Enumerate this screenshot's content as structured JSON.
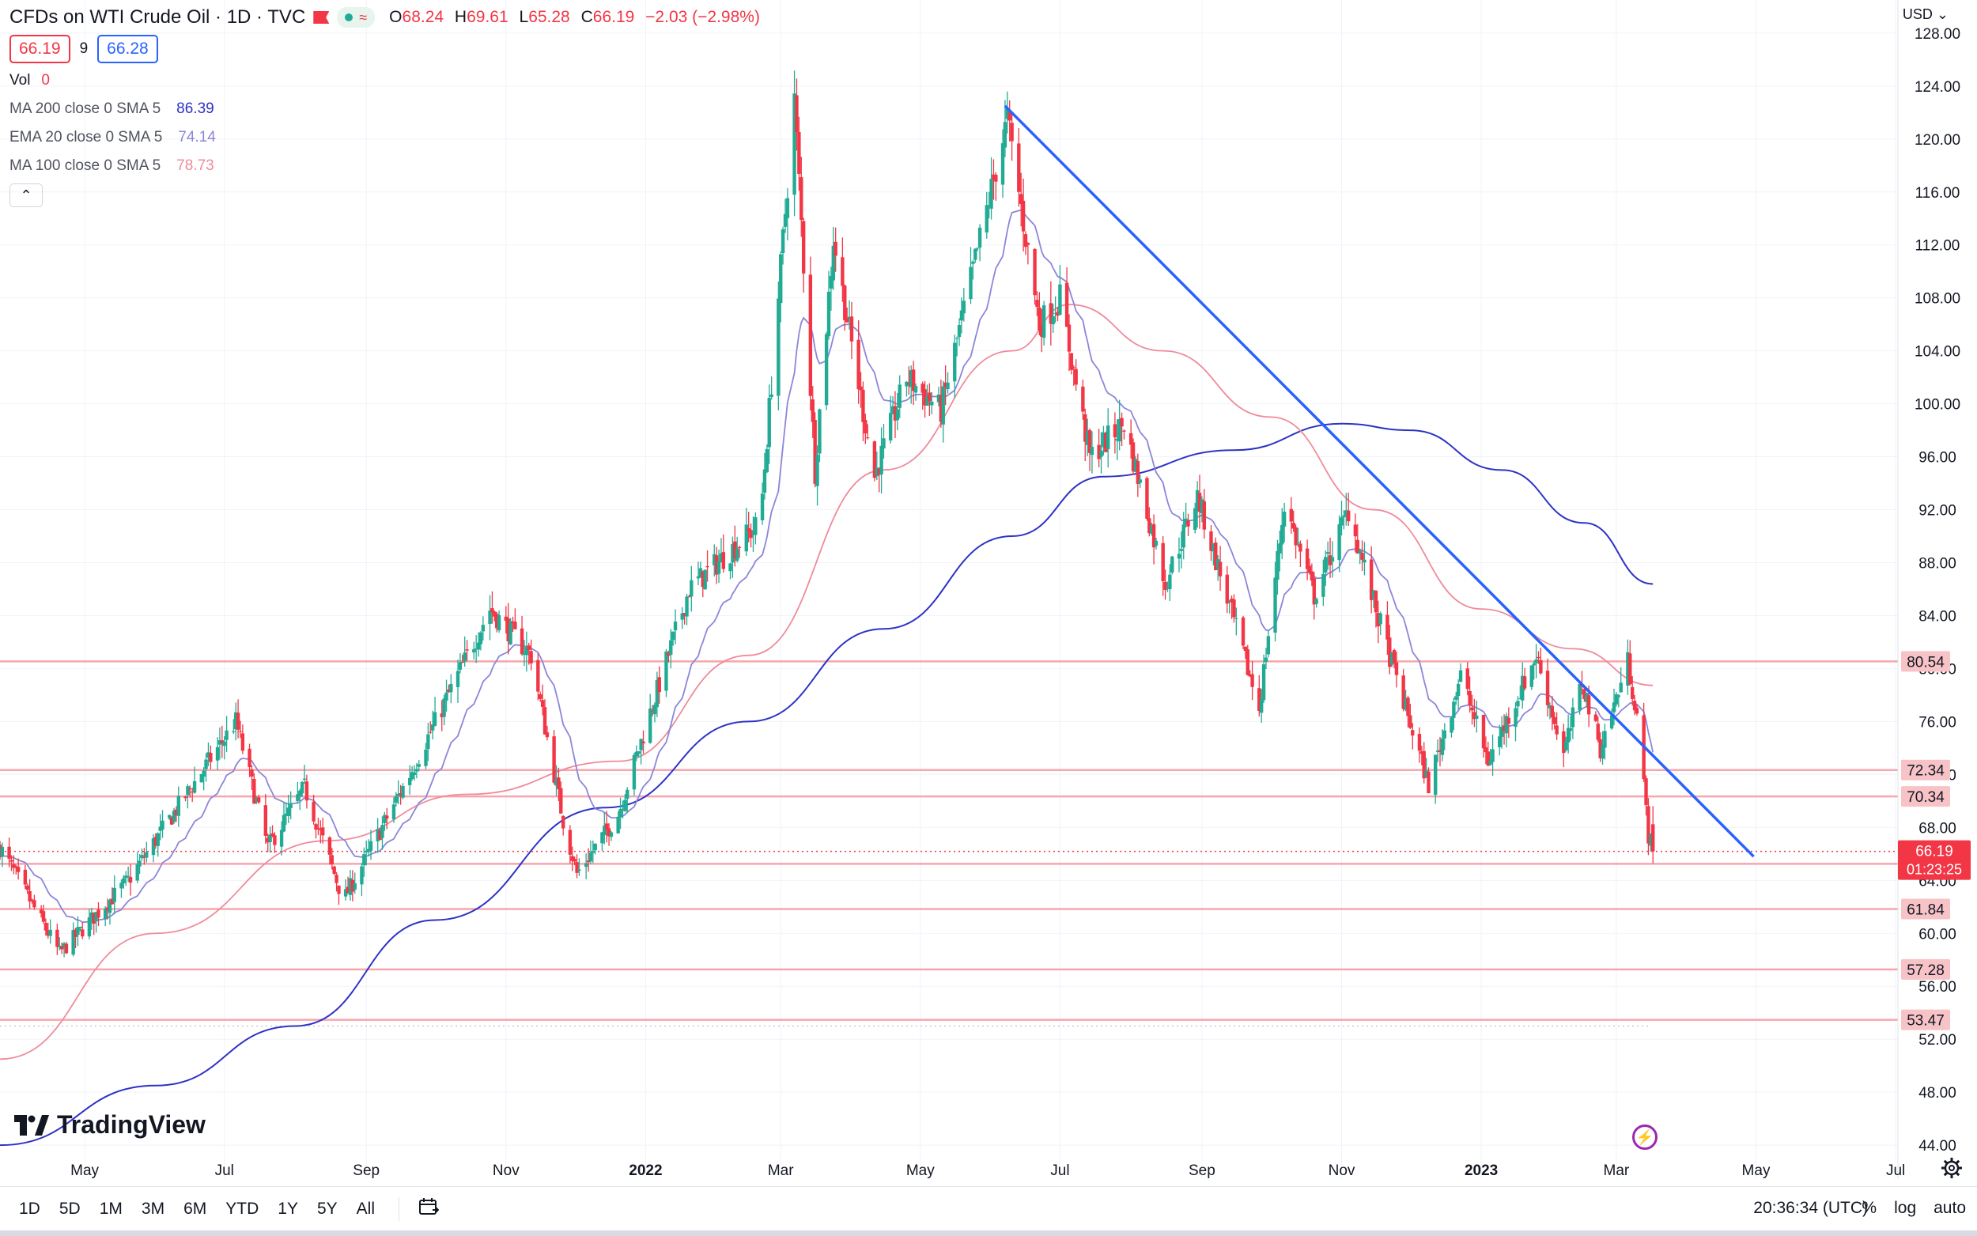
{
  "header": {
    "title": "CFDs on WTI Crude Oil · 1D · TVC",
    "ohlc": {
      "o_label": "O",
      "o": "68.24",
      "h_label": "H",
      "h": "69.61",
      "l_label": "L",
      "l": "65.28",
      "c_label": "C",
      "c": "66.19",
      "change": "−2.03 (−2.98%)"
    },
    "sell_price": "66.19",
    "spread": "9",
    "buy_price": "66.28",
    "volume_label": "Vol",
    "volume_value": "0",
    "indicators": [
      {
        "label": "MA 200 close 0 SMA 5",
        "value": "86.39",
        "color": "#2d33c4"
      },
      {
        "label": "EMA 20 close 0 SMA 5",
        "value": "74.14",
        "color": "#8c86d9"
      },
      {
        "label": "MA 100 close 0 SMA 5",
        "value": "78.73",
        "color": "#ef8b9a"
      }
    ],
    "currency": "USD"
  },
  "chart_data": {
    "type": "candlestick",
    "title": "CFDs on WTI Crude Oil · 1D · TVC",
    "y_axis": {
      "ylim": [
        41.5,
        130.5
      ],
      "ticks": [
        44,
        48,
        52,
        56,
        60,
        64,
        68,
        72,
        76,
        80,
        84,
        88,
        92,
        96,
        100,
        104,
        108,
        112,
        116,
        120,
        124,
        128
      ]
    },
    "x_axis": {
      "xlim": [
        "2021-03-25",
        "2023-07-02"
      ],
      "ticks": [
        {
          "label": "May",
          "date": "2021-05-01"
        },
        {
          "label": "Jul",
          "date": "2021-07-01"
        },
        {
          "label": "Sep",
          "date": "2021-09-01"
        },
        {
          "label": "Nov",
          "date": "2021-11-01"
        },
        {
          "label": "2022",
          "date": "2022-01-01",
          "bold": true
        },
        {
          "label": "Mar",
          "date": "2022-03-01"
        },
        {
          "label": "May",
          "date": "2022-05-01"
        },
        {
          "label": "Jul",
          "date": "2022-07-01"
        },
        {
          "label": "Sep",
          "date": "2022-09-01"
        },
        {
          "label": "Nov",
          "date": "2022-11-01"
        },
        {
          "label": "2023",
          "date": "2023-01-01",
          "bold": true
        },
        {
          "label": "Mar",
          "date": "2023-03-01"
        },
        {
          "label": "May",
          "date": "2023-05-01"
        },
        {
          "label": "Jul",
          "date": "2023-07-01"
        }
      ]
    },
    "anchors": [
      {
        "date": "2021-03-25",
        "price": 66.5
      },
      {
        "date": "2021-04-20",
        "price": 58.5
      },
      {
        "date": "2021-05-20",
        "price": 64.0
      },
      {
        "date": "2021-07-06",
        "price": 76.0
      },
      {
        "date": "2021-07-20",
        "price": 66.5
      },
      {
        "date": "2021-08-05",
        "price": 71.0
      },
      {
        "date": "2021-08-22",
        "price": 62.5
      },
      {
        "date": "2021-09-20",
        "price": 72.0
      },
      {
        "date": "2021-10-25",
        "price": 84.5
      },
      {
        "date": "2021-11-12",
        "price": 81.0
      },
      {
        "date": "2021-11-26",
        "price": 68.5
      },
      {
        "date": "2021-12-02",
        "price": 64.5
      },
      {
        "date": "2021-12-20",
        "price": 69.0
      },
      {
        "date": "2022-01-20",
        "price": 86.0
      },
      {
        "date": "2022-02-20",
        "price": 91.0
      },
      {
        "date": "2022-03-07",
        "price": 123.0
      },
      {
        "date": "2022-03-16",
        "price": 95.0
      },
      {
        "date": "2022-03-24",
        "price": 112.5
      },
      {
        "date": "2022-04-11",
        "price": 94.5
      },
      {
        "date": "2022-04-25",
        "price": 102.0
      },
      {
        "date": "2022-05-10",
        "price": 99.5
      },
      {
        "date": "2022-06-08",
        "price": 121.5
      },
      {
        "date": "2022-06-22",
        "price": 106.0
      },
      {
        "date": "2022-07-01",
        "price": 108.0
      },
      {
        "date": "2022-07-14",
        "price": 96.0
      },
      {
        "date": "2022-07-29",
        "price": 98.5
      },
      {
        "date": "2022-08-16",
        "price": 86.5
      },
      {
        "date": "2022-08-30",
        "price": 93.0
      },
      {
        "date": "2022-09-26",
        "price": 77.0
      },
      {
        "date": "2022-10-07",
        "price": 92.5
      },
      {
        "date": "2022-10-20",
        "price": 85.5
      },
      {
        "date": "2022-11-04",
        "price": 92.0
      },
      {
        "date": "2022-11-15",
        "price": 85.0
      },
      {
        "date": "2022-12-09",
        "price": 71.2
      },
      {
        "date": "2022-12-23",
        "price": 79.5
      },
      {
        "date": "2023-01-04",
        "price": 73.0
      },
      {
        "date": "2023-01-25",
        "price": 81.0
      },
      {
        "date": "2023-02-06",
        "price": 73.5
      },
      {
        "date": "2023-02-14",
        "price": 79.0
      },
      {
        "date": "2023-02-22",
        "price": 74.0
      },
      {
        "date": "2023-03-06",
        "price": 80.5
      },
      {
        "date": "2023-03-10",
        "price": 76.5
      },
      {
        "date": "2023-03-15",
        "price": 67.5
      },
      {
        "date": "2023-03-17",
        "price": 66.19
      }
    ],
    "last_candle": {
      "date": "2023-03-17",
      "open": 68.24,
      "high": 69.61,
      "low": 65.28,
      "close": 66.19
    },
    "horizontal_levels": [
      80.54,
      72.34,
      70.34,
      65.25,
      61.84,
      57.28,
      53.47
    ],
    "current_price": {
      "value": "66.19",
      "countdown": "01:23:25"
    },
    "trendline": {
      "start": {
        "date": "2022-06-07",
        "price": 122.5
      },
      "end": {
        "date": "2023-04-30",
        "price": 65.8
      }
    },
    "ma200_curve": [
      {
        "date": "2021-03-25",
        "price": 44.0
      },
      {
        "date": "2021-06-01",
        "price": 48.5
      },
      {
        "date": "2021-08-01",
        "price": 53.0
      },
      {
        "date": "2021-10-01",
        "price": 61.0
      },
      {
        "date": "2021-12-15",
        "price": 69.5
      },
      {
        "date": "2022-02-15",
        "price": 76.0
      },
      {
        "date": "2022-04-15",
        "price": 83.0
      },
      {
        "date": "2022-06-10",
        "price": 90.0
      },
      {
        "date": "2022-07-20",
        "price": 94.5
      },
      {
        "date": "2022-09-15",
        "price": 96.5
      },
      {
        "date": "2022-11-01",
        "price": 98.5
      },
      {
        "date": "2022-12-01",
        "price": 98.0
      },
      {
        "date": "2023-01-10",
        "price": 95.0
      },
      {
        "date": "2023-02-15",
        "price": 91.0
      },
      {
        "date": "2023-03-17",
        "price": 86.39
      }
    ],
    "ma100_curve": [
      {
        "date": "2021-03-25",
        "price": 50.5
      },
      {
        "date": "2021-06-01",
        "price": 60.0
      },
      {
        "date": "2021-08-15",
        "price": 67.0
      },
      {
        "date": "2021-10-15",
        "price": 70.5
      },
      {
        "date": "2021-12-20",
        "price": 73.0
      },
      {
        "date": "2022-02-15",
        "price": 81.0
      },
      {
        "date": "2022-04-15",
        "price": 95.0
      },
      {
        "date": "2022-06-10",
        "price": 104.0
      },
      {
        "date": "2022-07-05",
        "price": 107.5
      },
      {
        "date": "2022-08-15",
        "price": 104.0
      },
      {
        "date": "2022-10-01",
        "price": 99.0
      },
      {
        "date": "2022-11-15",
        "price": 92.0
      },
      {
        "date": "2023-01-01",
        "price": 84.5
      },
      {
        "date": "2023-02-10",
        "price": 81.5
      },
      {
        "date": "2023-03-17",
        "price": 78.73
      }
    ],
    "ema20_last": 74.14
  },
  "footer": {
    "logo_text": "TradingView",
    "timeframes": [
      "1D",
      "5D",
      "1M",
      "3M",
      "6M",
      "YTD",
      "1Y",
      "5Y",
      "All"
    ],
    "time": "20:36:34 (UTC)",
    "percent": "%",
    "log": "log",
    "auto": "auto"
  },
  "colors": {
    "up": "#22ab94",
    "down": "#f23645",
    "trend": "#2962ff",
    "level": "#f7a6ad",
    "ma200": "#2d33c4",
    "ema20": "#8c86d9",
    "ma100": "#ef8b9a"
  }
}
